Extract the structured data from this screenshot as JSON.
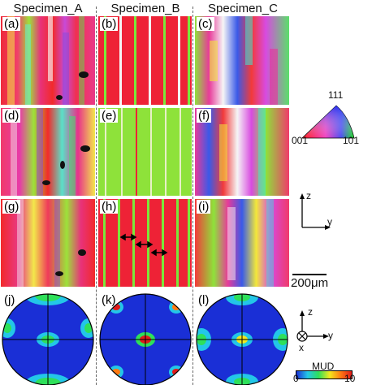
{
  "columns": [
    "Specimen_A",
    "Specimen_B",
    "Specimen_C"
  ],
  "panel_labels": [
    "(a)",
    "(b)",
    "(c)",
    "(d)",
    "(e)",
    "(f)",
    "(g)",
    "(h)",
    "(i)",
    "(j)",
    "(k)",
    "(l)"
  ],
  "ipf_key": {
    "top": "111",
    "left": "001",
    "right": "101"
  },
  "axes_map": {
    "vertical": "z",
    "horizontal": "y"
  },
  "axes_pole": {
    "vertical": "z",
    "horizontal": "y",
    "out_of_plane": "x"
  },
  "scale_bar": "200μm",
  "mud_legend": {
    "title": "MUD",
    "min": "0",
    "max": "10",
    "colors": [
      "#1a2fd6",
      "#23c6e8",
      "#2ee05a",
      "#f2e81e",
      "#ff7a12",
      "#e01a1a"
    ]
  }
}
